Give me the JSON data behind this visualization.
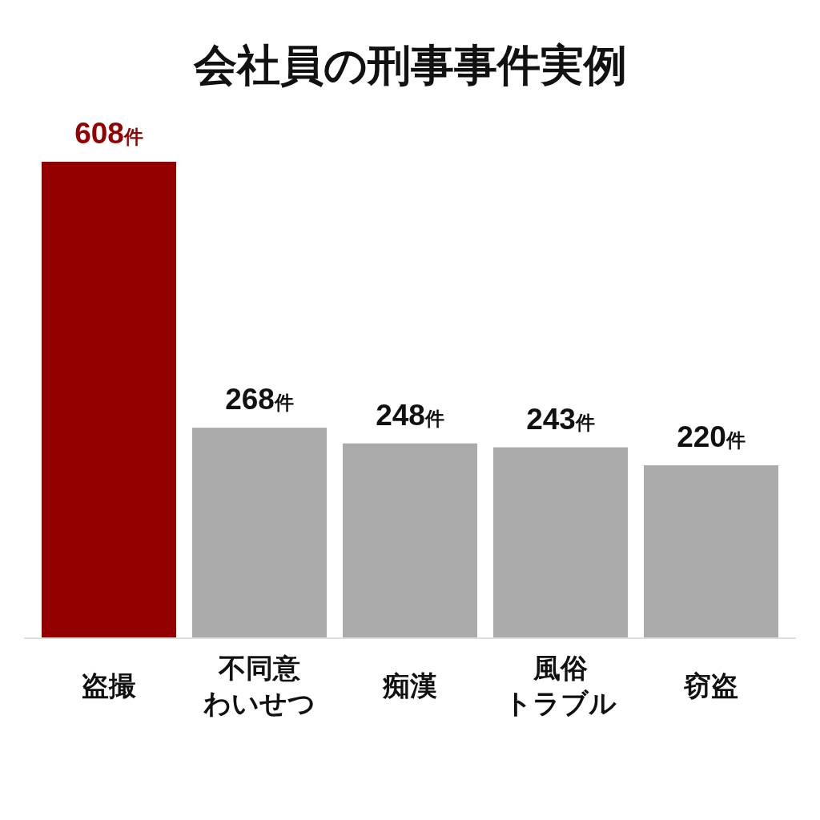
{
  "chart_data": {
    "type": "bar",
    "title": "会社員の刑事事件実例",
    "categories": [
      "盗撮",
      "不同意わいせつ",
      "痴漢",
      "風俗トラブル",
      "窃盗"
    ],
    "values": [
      608,
      268,
      248,
      243,
      220
    ],
    "colors": [
      "#940000",
      "#aaaaaa",
      "#aaaaaa",
      "#aaaaaa",
      "#aaaaaa"
    ],
    "value_labels": [
      "608件",
      "268件",
      "248件",
      "243件",
      "220件"
    ]
  }
}
